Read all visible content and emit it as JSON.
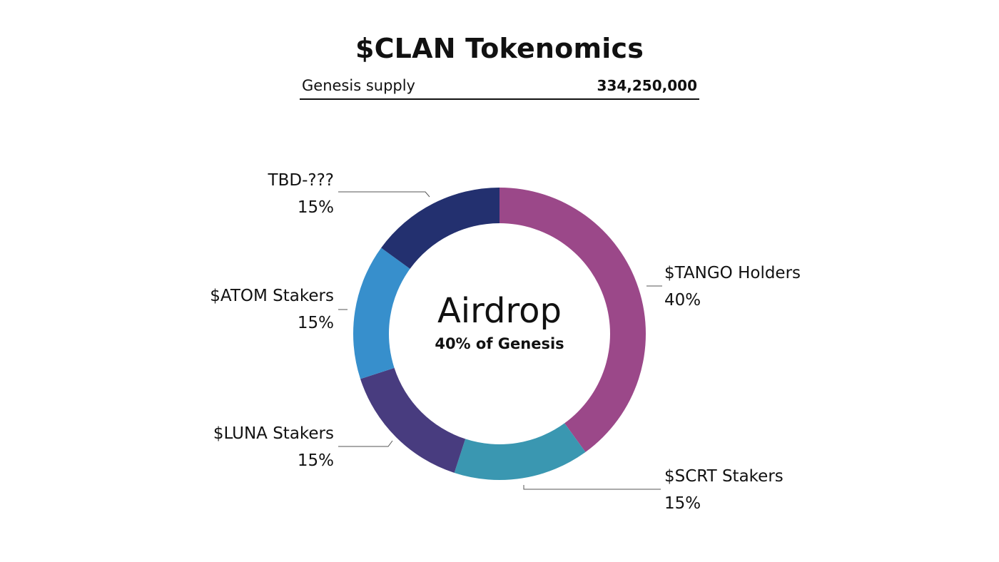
{
  "header": {
    "title": "$CLAN Tokenomics",
    "supply_label": "Genesis supply",
    "supply_value": "334,250,000"
  },
  "center": {
    "title": "Airdrop",
    "subtitle": "40% of Genesis"
  },
  "chart_data": {
    "type": "pie",
    "style": "donut",
    "start": "12 o'clock, clockwise",
    "series": [
      {
        "name": "$TANGO Holders",
        "value": 40,
        "percent_label": "40%",
        "color": "#9b4889"
      },
      {
        "name": "$SCRT Stakers",
        "value": 15,
        "percent_label": "15%",
        "color": "#3a97b1"
      },
      {
        "name": "$LUNA Stakers",
        "value": 15,
        "percent_label": "15%",
        "color": "#483c7f"
      },
      {
        "name": "$ATOM Stakers",
        "value": 15,
        "percent_label": "15%",
        "color": "#378fcc"
      },
      {
        "name": "TBD-???",
        "value": 15,
        "percent_label": "15%",
        "color": "#23306f"
      }
    ],
    "colors": {
      "leader_line": "#555555"
    }
  }
}
